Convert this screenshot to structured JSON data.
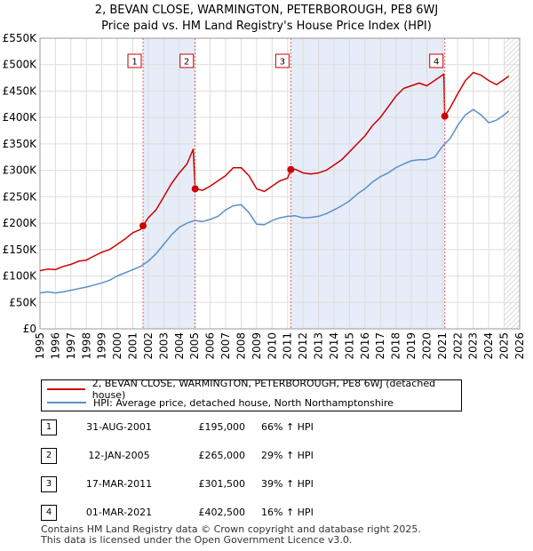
{
  "chart_data": {
    "type": "line",
    "title": "2, BEVAN CLOSE, WARMINGTON, PETERBOROUGH, PE8 6WJ",
    "subtitle": "Price paid vs. HM Land Registry's House Price Index (HPI)",
    "xlabel": "",
    "ylabel": "",
    "xlim": [
      1995,
      2026
    ],
    "ylim": [
      0,
      550000
    ],
    "x_ticks": [
      "1995",
      "1996",
      "1997",
      "1998",
      "1999",
      "2000",
      "2001",
      "2002",
      "2003",
      "2004",
      "2005",
      "2006",
      "2007",
      "2008",
      "2009",
      "2010",
      "2011",
      "2012",
      "2013",
      "2014",
      "2015",
      "2016",
      "2017",
      "2018",
      "2019",
      "2020",
      "2021",
      "2022",
      "2023",
      "2024",
      "2025",
      "2026"
    ],
    "y_ticks": [
      {
        "value": 0,
        "label": "£0"
      },
      {
        "value": 50000,
        "label": "£50K"
      },
      {
        "value": 100000,
        "label": "£100K"
      },
      {
        "value": 150000,
        "label": "£150K"
      },
      {
        "value": 200000,
        "label": "£200K"
      },
      {
        "value": 250000,
        "label": "£250K"
      },
      {
        "value": 300000,
        "label": "£300K"
      },
      {
        "value": 350000,
        "label": "£350K"
      },
      {
        "value": 400000,
        "label": "£400K"
      },
      {
        "value": 450000,
        "label": "£450K"
      },
      {
        "value": 500000,
        "label": "£500K"
      },
      {
        "value": 550000,
        "label": "£550K"
      }
    ],
    "grid": true,
    "shaded_periods": [
      [
        2001.66,
        2005.03
      ],
      [
        2011.21,
        2021.16
      ]
    ],
    "hatched_from": 2025.0,
    "series": [
      {
        "name": "2, BEVAN CLOSE, WARMINGTON, PETERBOROUGH, PE8 6WJ (detached house)",
        "color": "#cc0000",
        "x": [
          1995,
          1995.5,
          1996,
          1996.5,
          1997,
          1997.5,
          1998,
          1998.5,
          1999,
          1999.5,
          2000,
          2000.5,
          2001,
          2001.5,
          2001.66,
          2002,
          2002.5,
          2003,
          2003.5,
          2004,
          2004.5,
          2004.9,
          2005.03,
          2005.5,
          2006,
          2006.5,
          2007,
          2007.5,
          2008,
          2008.5,
          2009,
          2009.5,
          2010,
          2010.5,
          2011,
          2011.21,
          2011.5,
          2012,
          2012.5,
          2013,
          2013.5,
          2014,
          2014.5,
          2015,
          2015.5,
          2016,
          2016.5,
          2017,
          2017.5,
          2018,
          2018.5,
          2019,
          2019.5,
          2020,
          2020.5,
          2021,
          2021.1,
          2021.16,
          2021.5,
          2022,
          2022.5,
          2023,
          2023.5,
          2024,
          2024.5,
          2025,
          2025.3
        ],
        "values": [
          110000,
          113000,
          112000,
          118000,
          122000,
          128000,
          130000,
          138000,
          145000,
          150000,
          160000,
          170000,
          182000,
          188000,
          195000,
          210000,
          225000,
          250000,
          275000,
          295000,
          312000,
          340000,
          265000,
          262000,
          270000,
          280000,
          290000,
          305000,
          305000,
          290000,
          265000,
          260000,
          270000,
          280000,
          285000,
          301500,
          302000,
          295000,
          293000,
          295000,
          300000,
          310000,
          320000,
          335000,
          350000,
          365000,
          385000,
          400000,
          420000,
          440000,
          455000,
          460000,
          465000,
          460000,
          470000,
          480000,
          482000,
          402500,
          418000,
          445000,
          470000,
          485000,
          480000,
          470000,
          462000,
          472000,
          478000
        ]
      },
      {
        "name": "HPI: Average price, detached house, North Northamptonshire",
        "color": "#5b8fc7",
        "x": [
          1995,
          1995.5,
          1996,
          1996.5,
          1997,
          1997.5,
          1998,
          1998.5,
          1999,
          1999.5,
          2000,
          2000.5,
          2001,
          2001.5,
          2002,
          2002.5,
          2003,
          2003.5,
          2004,
          2004.5,
          2005,
          2005.5,
          2006,
          2006.5,
          2007,
          2007.5,
          2008,
          2008.5,
          2009,
          2009.5,
          2010,
          2010.5,
          2011,
          2011.5,
          2012,
          2012.5,
          2013,
          2013.5,
          2014,
          2014.5,
          2015,
          2015.5,
          2016,
          2016.5,
          2017,
          2017.5,
          2018,
          2018.5,
          2019,
          2019.5,
          2020,
          2020.5,
          2021,
          2021.5,
          2022,
          2022.5,
          2023,
          2023.5,
          2024,
          2024.5,
          2025,
          2025.3
        ],
        "values": [
          68000,
          70000,
          68000,
          70000,
          73000,
          76000,
          79000,
          83000,
          87000,
          92000,
          100000,
          106000,
          112000,
          118000,
          128000,
          142000,
          160000,
          178000,
          192000,
          200000,
          205000,
          203000,
          207000,
          213000,
          225000,
          233000,
          235000,
          220000,
          198000,
          197000,
          205000,
          210000,
          213000,
          214000,
          210000,
          211000,
          213000,
          218000,
          225000,
          233000,
          242000,
          255000,
          265000,
          278000,
          288000,
          295000,
          305000,
          312000,
          318000,
          320000,
          320000,
          325000,
          345000,
          360000,
          385000,
          405000,
          415000,
          405000,
          390000,
          395000,
          405000,
          412000
        ]
      }
    ],
    "markers": [
      {
        "label": "1",
        "x": 2001.66,
        "y": 195000
      },
      {
        "label": "2",
        "x": 2005.03,
        "y": 265000
      },
      {
        "label": "3",
        "x": 2011.21,
        "y": 301500
      },
      {
        "label": "4",
        "x": 2021.16,
        "y": 402500
      }
    ]
  },
  "legend": {
    "property_label": "2, BEVAN CLOSE, WARMINGTON, PETERBOROUGH, PE8 6WJ (detached house)",
    "hpi_label": "HPI: Average price, detached house, North Northamptonshire",
    "property_color": "#cc0000",
    "hpi_color": "#5b8fc7"
  },
  "sales": [
    {
      "num": "1",
      "date": "31-AUG-2001",
      "price": "£195,000",
      "hpi": "66% ↑ HPI"
    },
    {
      "num": "2",
      "date": "12-JAN-2005",
      "price": "£265,000",
      "hpi": "29% ↑ HPI"
    },
    {
      "num": "3",
      "date": "17-MAR-2011",
      "price": "£301,500",
      "hpi": "39% ↑ HPI"
    },
    {
      "num": "4",
      "date": "01-MAR-2021",
      "price": "£402,500",
      "hpi": "16% ↑ HPI"
    }
  ],
  "footer": {
    "line1": "Contains HM Land Registry data © Crown copyright and database right 2025.",
    "line2": "This data is licensed under the Open Government Licence v3.0."
  }
}
